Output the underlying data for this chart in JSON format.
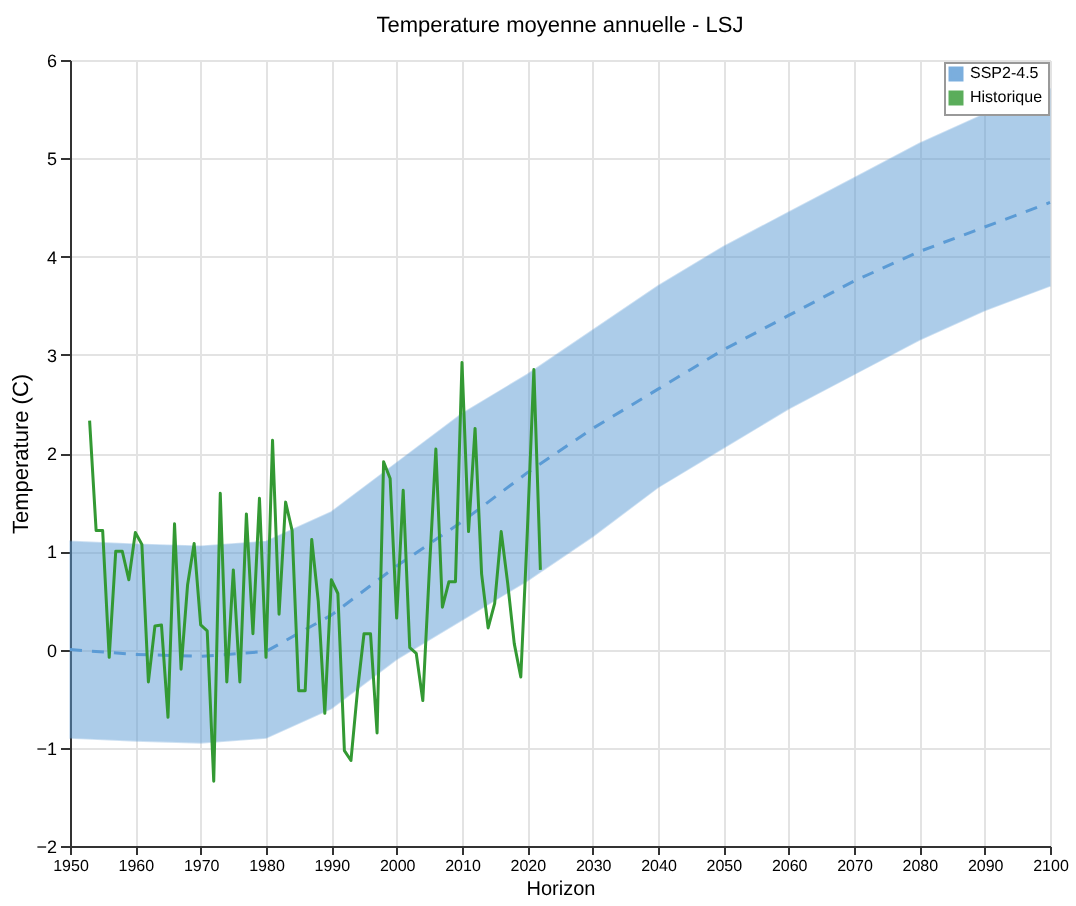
{
  "chart_data": {
    "type": "line",
    "title": "Temperature moyenne annuelle - LSJ",
    "xlabel": "Horizon",
    "ylabel": "Temperature (C)",
    "xlim": [
      1950,
      2100
    ],
    "ylim": [
      -2,
      6
    ],
    "xticks": [
      1950,
      1960,
      1970,
      1980,
      1990,
      2000,
      2010,
      2020,
      2030,
      2040,
      2050,
      2060,
      2070,
      2080,
      2090,
      2100
    ],
    "yticks": [
      -2,
      -1,
      0,
      1,
      2,
      3,
      4,
      5,
      6
    ],
    "grid": true,
    "legend": "top right",
    "series": [
      {
        "name": "SSP2-4.5",
        "color": "#5b9bd5",
        "line_style": "dashed",
        "x": [
          1950,
          1960,
          1970,
          1980,
          1990,
          2000,
          2010,
          2020,
          2030,
          2040,
          2050,
          2060,
          2070,
          2080,
          2090,
          2100
        ],
        "values": [
          0,
          -0.05,
          -0.07,
          -0.02,
          0.35,
          0.85,
          1.3,
          1.8,
          2.25,
          2.65,
          3.05,
          3.4,
          3.75,
          4.05,
          4.3,
          4.55
        ],
        "lower": [
          -0.9,
          -0.93,
          -0.95,
          -0.9,
          -0.6,
          -0.1,
          0.3,
          0.7,
          1.15,
          1.65,
          2.05,
          2.45,
          2.8,
          3.15,
          3.45,
          3.7
        ],
        "upper": [
          1.1,
          1.07,
          1.05,
          1.1,
          1.4,
          1.9,
          2.4,
          2.8,
          3.25,
          3.7,
          4.1,
          4.45,
          4.8,
          5.15,
          5.45,
          5.7
        ]
      },
      {
        "name": "Historique",
        "color": "#339933",
        "line_style": "solid",
        "x": [
          1953,
          1954,
          1955,
          1956,
          1957,
          1958,
          1959,
          1960,
          1961,
          1962,
          1963,
          1964,
          1965,
          1966,
          1967,
          1968,
          1969,
          1970,
          1971,
          1972,
          1973,
          1974,
          1975,
          1976,
          1977,
          1978,
          1979,
          1980,
          1981,
          1982,
          1983,
          1984,
          1985,
          1986,
          1987,
          1988,
          1989,
          1990,
          1991,
          1992,
          1993,
          1994,
          1995,
          1996,
          1997,
          1998,
          1999,
          2000,
          2001,
          2002,
          2003,
          2004,
          2005,
          2006,
          2007,
          2008,
          2009,
          2010,
          2011,
          2012,
          2013,
          2014,
          2015,
          2016,
          2017,
          2018,
          2019,
          2020,
          2021,
          2022
        ],
        "values": [
          2.33,
          1.21,
          1.21,
          -0.08,
          1.0,
          1.0,
          0.71,
          1.19,
          1.07,
          -0.33,
          0.24,
          0.25,
          -0.69,
          1.28,
          -0.2,
          0.66,
          1.08,
          0.25,
          0.19,
          -1.34,
          1.59,
          -0.33,
          0.81,
          -0.33,
          1.38,
          0.16,
          1.54,
          -0.08,
          2.13,
          0.36,
          1.5,
          1.21,
          -0.42,
          -0.42,
          1.12,
          0.49,
          -0.65,
          0.71,
          0.57,
          -1.03,
          -1.13,
          -0.42,
          0.16,
          0.16,
          -0.85,
          1.91,
          1.74,
          0.32,
          1.62,
          0.02,
          -0.04,
          -0.52,
          0.8,
          2.04,
          0.43,
          0.69,
          0.69,
          2.92,
          1.2,
          2.25,
          0.77,
          0.22,
          0.47,
          1.2,
          0.67,
          0.06,
          -0.28,
          1.2,
          2.85,
          0.81
        ]
      }
    ]
  }
}
